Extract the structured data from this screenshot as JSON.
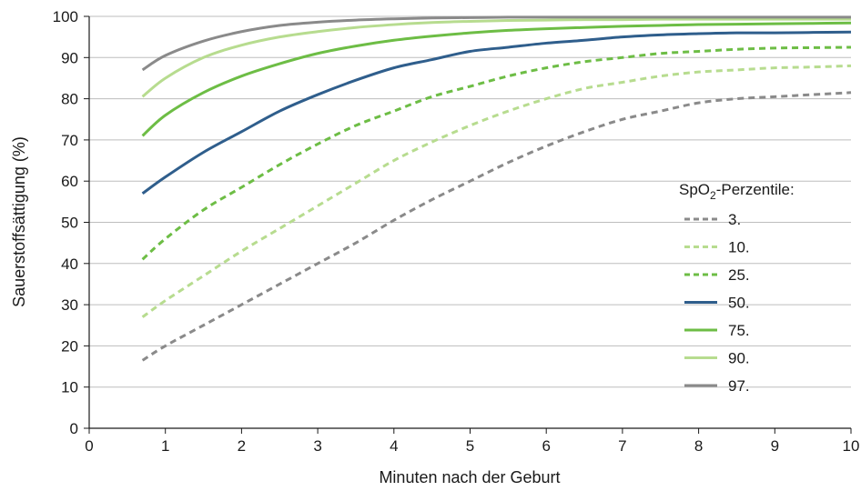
{
  "chart_data": {
    "type": "line",
    "title": "",
    "xlabel": "Minuten nach der Geburt",
    "ylabel": "Sauerstoffsättigung (%)",
    "xlim": [
      0,
      10
    ],
    "ylim": [
      0,
      100
    ],
    "x_ticks": [
      0,
      1,
      2,
      3,
      4,
      5,
      6,
      7,
      8,
      9,
      10
    ],
    "y_ticks": [
      0,
      10,
      20,
      30,
      40,
      50,
      60,
      70,
      80,
      90,
      100
    ],
    "grid": "horizontal",
    "legend": {
      "title_prefix": "SpO",
      "title_sub": "2",
      "title_suffix": "-Perzentile:",
      "placement": "right"
    },
    "colors": {
      "dark_gray": "#8a8a8a",
      "light_green": "#b7dc8f",
      "green": "#6dbd45",
      "blue": "#2f5e8c",
      "grid": "#bdbdbd"
    },
    "series": [
      {
        "name": "3.",
        "color": "#8a8a8a",
        "dash": "dashed",
        "x": [
          0.7,
          1,
          1.5,
          2,
          2.5,
          3,
          3.5,
          4,
          4.5,
          5,
          5.5,
          6,
          6.5,
          7,
          7.5,
          8,
          8.5,
          9,
          9.5,
          10
        ],
        "values": [
          16.5,
          20,
          25,
          30,
          35,
          40,
          45,
          50.5,
          55.5,
          60,
          64.5,
          68.5,
          72,
          75,
          77,
          79,
          80,
          80.5,
          81,
          81.5
        ]
      },
      {
        "name": "10.",
        "color": "#b7dc8f",
        "dash": "dashed",
        "x": [
          0.7,
          1,
          1.5,
          2,
          2.5,
          3,
          3.5,
          4,
          4.5,
          5,
          5.5,
          6,
          6.5,
          7,
          7.5,
          8,
          8.5,
          9,
          9.5,
          10
        ],
        "values": [
          27,
          31,
          37,
          43,
          48.5,
          54,
          59.5,
          65,
          69.5,
          73.5,
          77,
          80,
          82.5,
          84,
          85.5,
          86.5,
          87,
          87.5,
          87.7,
          88
        ]
      },
      {
        "name": "25.",
        "color": "#6dbd45",
        "dash": "dashed",
        "x": [
          0.7,
          1,
          1.5,
          2,
          2.5,
          3,
          3.5,
          4,
          4.5,
          5,
          5.5,
          6,
          6.5,
          7,
          7.5,
          8,
          8.5,
          9,
          9.5,
          10
        ],
        "values": [
          41,
          46,
          53,
          58.5,
          64,
          69,
          73.5,
          77,
          80.5,
          83,
          85.5,
          87.5,
          89,
          90,
          91,
          91.5,
          92,
          92.3,
          92.4,
          92.5
        ]
      },
      {
        "name": "50.",
        "color": "#2f5e8c",
        "dash": "solid",
        "x": [
          0.7,
          1,
          1.5,
          2,
          2.5,
          3,
          3.5,
          4,
          4.5,
          5,
          5.5,
          6,
          6.5,
          7,
          7.5,
          8,
          8.5,
          9,
          9.5,
          10
        ],
        "values": [
          57,
          61,
          67,
          72,
          77,
          81,
          84.5,
          87.5,
          89.5,
          91.5,
          92.5,
          93.5,
          94.2,
          95,
          95.5,
          95.8,
          96,
          96,
          96.1,
          96.2
        ]
      },
      {
        "name": "75.",
        "color": "#6dbd45",
        "dash": "solid",
        "x": [
          0.7,
          1,
          1.5,
          2,
          2.5,
          3,
          3.5,
          4,
          4.5,
          5,
          5.5,
          6,
          6.5,
          7,
          7.5,
          8,
          8.5,
          9,
          9.5,
          10
        ],
        "values": [
          71,
          76,
          81.5,
          85.5,
          88.5,
          91,
          92.8,
          94.2,
          95.2,
          96,
          96.6,
          97,
          97.3,
          97.6,
          97.8,
          98,
          98.1,
          98.2,
          98.3,
          98.4
        ]
      },
      {
        "name": "90.",
        "color": "#b7dc8f",
        "dash": "solid",
        "x": [
          0.7,
          1,
          1.5,
          2,
          2.5,
          3,
          3.5,
          4,
          4.5,
          5,
          5.5,
          6,
          6.5,
          7,
          7.5,
          8,
          8.5,
          9,
          9.5,
          10
        ],
        "values": [
          80.5,
          85,
          90,
          93,
          95,
          96.3,
          97.3,
          98,
          98.5,
          98.8,
          99,
          99.1,
          99.2,
          99.2,
          99.3,
          99.3,
          99.3,
          99.3,
          99.3,
          99.3
        ]
      },
      {
        "name": "97.",
        "color": "#8a8a8a",
        "dash": "solid",
        "x": [
          0.7,
          1,
          1.5,
          2,
          2.5,
          3,
          3.5,
          4,
          4.5,
          5,
          5.5,
          6,
          6.5,
          7,
          7.5,
          8,
          8.5,
          9,
          9.5,
          10
        ],
        "values": [
          87,
          90.5,
          94,
          96.3,
          97.8,
          98.6,
          99.1,
          99.4,
          99.6,
          99.7,
          99.8,
          99.8,
          99.8,
          99.8,
          99.8,
          99.8,
          99.8,
          99.8,
          99.8,
          99.8
        ]
      }
    ]
  }
}
